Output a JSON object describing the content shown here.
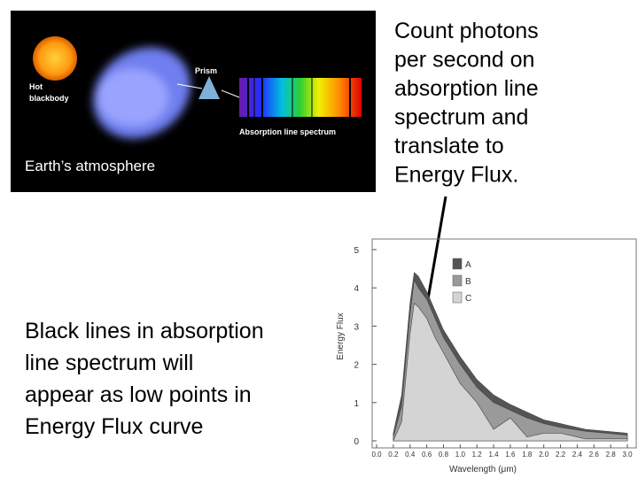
{
  "image": {
    "hot_label": [
      "Hot",
      "blackbody"
    ],
    "prism_label": "Prism",
    "spectrum_label": "Absorption line spectrum",
    "atmosphere_label": "Earth’s atmosphere"
  },
  "right_text": [
    "Count photons",
    "per second on",
    "absorption line",
    "spectrum and",
    "translate to",
    "Energy Flux."
  ],
  "left_text": [
    "Black lines in absorption",
    "line spectrum will",
    "appear as low points in",
    "Energy Flux curve"
  ],
  "chart_data": {
    "type": "area",
    "x_label": "Wavelength (μm)",
    "y_label": "Energy Flux",
    "x": [
      0.2,
      0.3,
      0.4,
      0.45,
      0.5,
      0.6,
      0.7,
      0.8,
      1.0,
      1.2,
      1.4,
      1.6,
      1.8,
      2.0,
      2.2,
      2.5,
      3.0
    ],
    "series": [
      {
        "name": "A",
        "color": "#555555",
        "values": [
          0.2,
          1.2,
          3.6,
          4.4,
          4.3,
          3.9,
          3.4,
          2.9,
          2.2,
          1.6,
          1.2,
          0.95,
          0.75,
          0.55,
          0.45,
          0.3,
          0.2
        ]
      },
      {
        "name": "B",
        "color": "#9a9a9a",
        "values": [
          0.1,
          0.9,
          3.3,
          4.2,
          4.0,
          3.7,
          3.2,
          2.7,
          2.0,
          1.4,
          1.0,
          0.8,
          0.6,
          0.45,
          0.35,
          0.25,
          0.15
        ]
      },
      {
        "name": "C",
        "color": "#d4d4d4",
        "values": [
          0,
          0.5,
          2.8,
          3.6,
          3.5,
          3.2,
          2.7,
          2.3,
          1.5,
          1.0,
          0.3,
          0.6,
          0.1,
          0.2,
          0.2,
          0.05,
          0.05
        ]
      }
    ],
    "xlim": [
      0,
      3
    ],
    "ylim": [
      0,
      5
    ],
    "xticks": [
      {
        "value": 0,
        "label": "0.0"
      },
      0.2,
      0.4,
      0.6,
      0.8,
      {
        "value": 1,
        "label": "1.0"
      },
      1.2,
      1.4,
      1.6,
      1.8,
      {
        "value": 2,
        "label": "2.0"
      },
      2.2,
      2.4,
      2.6,
      2.8,
      {
        "value": 3,
        "label": "3.0"
      }
    ],
    "yticks": [
      0,
      1,
      2,
      3,
      4,
      5
    ]
  }
}
